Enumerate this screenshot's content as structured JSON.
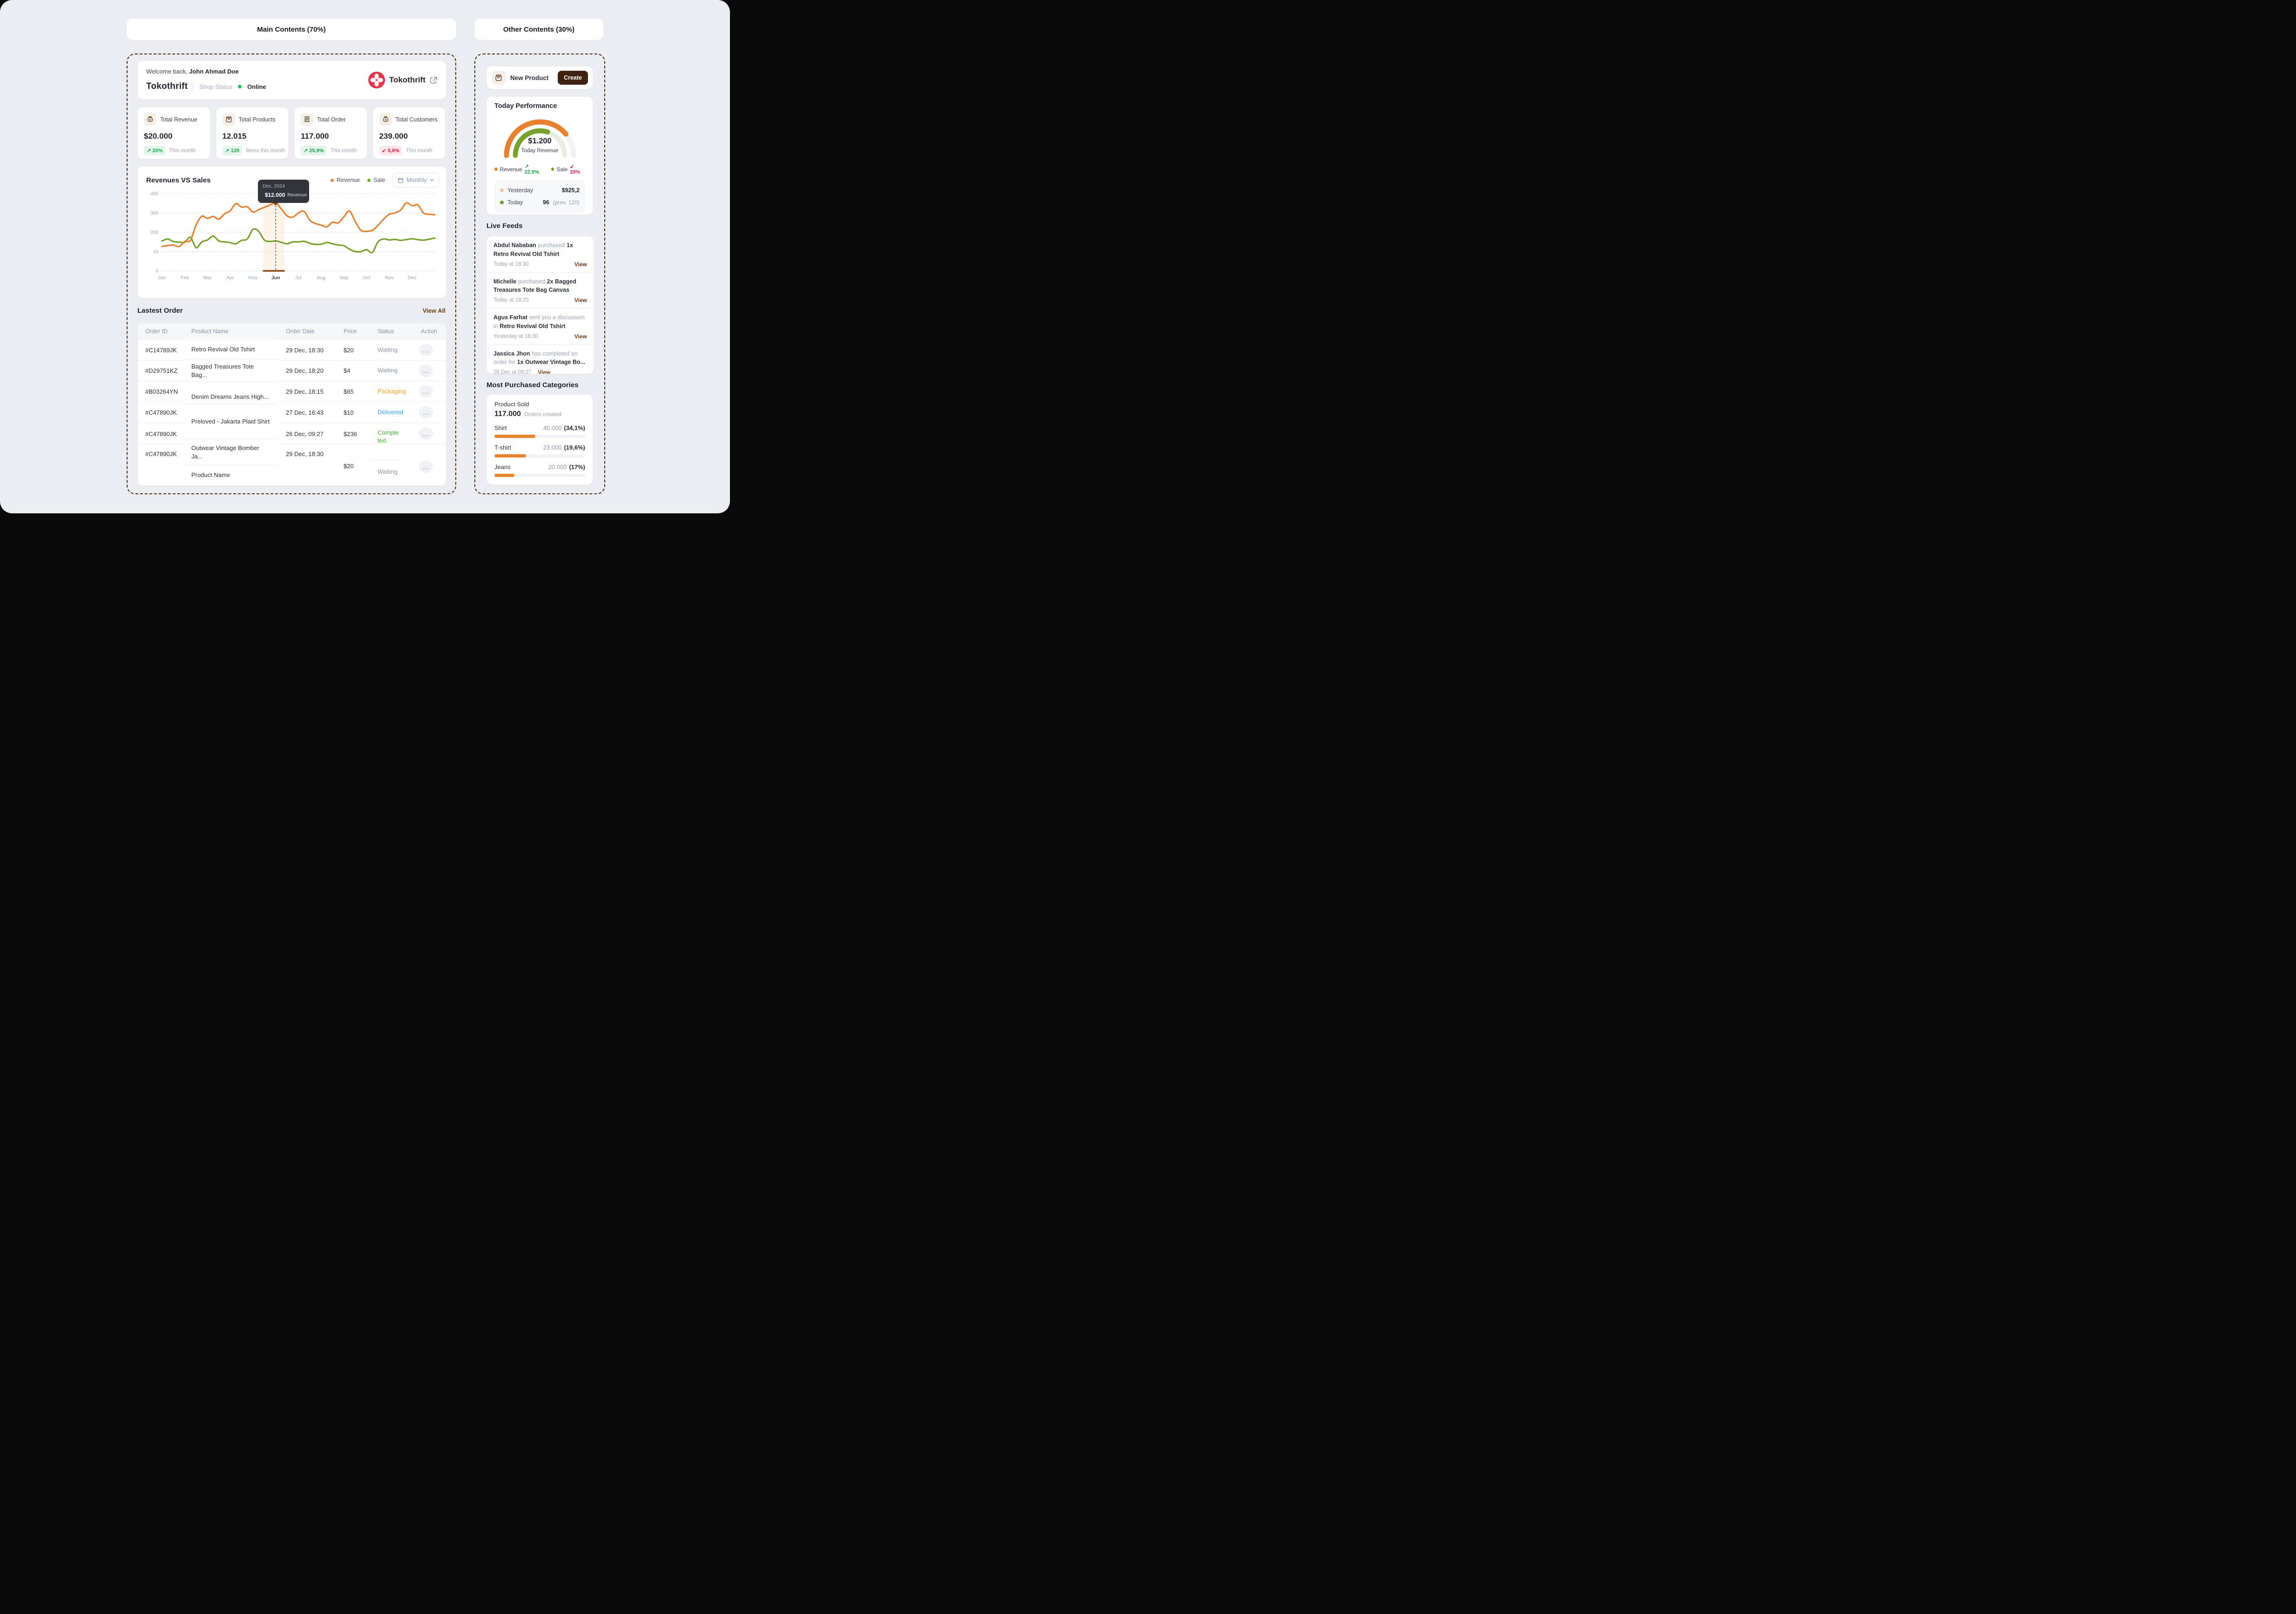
{
  "headers": {
    "main": "Main Contents (70%)",
    "other": "Other Contents (30%)"
  },
  "welcome": {
    "greeting": "Welcome back,",
    "user_name": "John Ahmad Doe",
    "shop_name": "Tokothrift",
    "shop_status_label": "Shop Status",
    "status_value": "Online",
    "status_color": "#22c55e",
    "brand_name": "Tokothrift",
    "brand_color": "#E73249"
  },
  "stats": [
    {
      "icon": "money-bag-icon",
      "label": "Total Revenue",
      "value": "$20.000",
      "delta": "20%",
      "delta_dir": "up",
      "arrow": "↗",
      "note": "This month"
    },
    {
      "icon": "shopping-bag-icon",
      "label": "Total Products",
      "value": "12.015",
      "delta": "120",
      "delta_dir": "up",
      "arrow": "↗",
      "note": "Items this month"
    },
    {
      "icon": "receipt-icon",
      "label": "Total Order",
      "value": "117.000",
      "delta": "25,9%",
      "delta_dir": "up",
      "arrow": "↗",
      "note": "This month"
    },
    {
      "icon": "money-bag-icon",
      "label": "Total Customers",
      "value": "239.000",
      "delta": "5,6%",
      "delta_dir": "down",
      "arrow": "↙",
      "note": "This month"
    }
  ],
  "chart_card": {
    "title": "Revenues VS Sales",
    "range_label": "Monthly",
    "tooltip": {
      "title": "Dec, 2024",
      "value": "$12.000",
      "series": "Revenue"
    }
  },
  "chart_data": {
    "type": "line",
    "title": "Revenues VS Sales",
    "categories": [
      "Jan",
      "Feb",
      "Mar",
      "Apr",
      "May",
      "Jun",
      "Jul",
      "Aug",
      "Sep",
      "Oct",
      "Nov",
      "Dec"
    ],
    "points_per_month": 4,
    "ylim": [
      0,
      400
    ],
    "ytick_labels_top_down": [
      "400",
      "300",
      "200",
      "10",
      "0"
    ],
    "grid": "dotted-horizontal",
    "legend_position": "top-right",
    "highlight": {
      "month": "Jun",
      "point_series": "Revenue",
      "point_value": 352,
      "tooltip": "Dec, 2024 $12.000 Revenue"
    },
    "series": [
      {
        "name": "Revenue",
        "color": "#E8802E",
        "values": [
          127,
          131,
          134,
          126,
          152,
          158,
          238,
          283,
          272,
          282,
          268,
          295,
          311,
          348,
          330,
          332,
          305,
          317,
          329,
          341,
          352,
          320,
          285,
          278,
          300,
          308,
          262,
          245,
          237,
          228,
          252,
          248,
          280,
          310,
          255,
          210,
          205,
          210,
          235,
          268,
          293,
          300,
          315,
          352,
          337,
          342,
          300,
          293,
          291
        ]
      },
      {
        "name": "Sale",
        "color": "#76A12A",
        "values": [
          155,
          165,
          152,
          149,
          148,
          174,
          120,
          150,
          160,
          180,
          155,
          150,
          146,
          140,
          158,
          165,
          215,
          205,
          160,
          152,
          155,
          148,
          140,
          150,
          150,
          153,
          143,
          137,
          138,
          147,
          140,
          134,
          130,
          112,
          100,
          100,
          110,
          95,
          150,
          165,
          160,
          163,
          158,
          162,
          166,
          162,
          159,
          164,
          170
        ]
      }
    ]
  },
  "orders": {
    "title": "Lastest Order",
    "view_all": "View All",
    "columns": [
      "Order ID",
      "Product Name",
      "Order Date",
      "Price",
      "Status",
      "Action"
    ],
    "action_glyph": "...",
    "rows": [
      {
        "id": "#C14789JK",
        "product": "Retro Revival Old Tshirt",
        "date": "29 Dec, 18:30",
        "price": "$20",
        "status": "Waiting",
        "status_color": "gray"
      },
      {
        "id": "#D29751KZ",
        "product": "Bagged Treasures Tote Bag...",
        "date": "29 Dec, 18:20",
        "price": "$4",
        "status": "Waiting",
        "status_color": "gray"
      },
      {
        "id": "#B03264YN",
        "product": "Denim Dreams Jeans High...",
        "date": "29 Dec, 18:15",
        "price": "$65",
        "status": "Packaging",
        "status_color": "orange"
      },
      {
        "id": "#C47890JK",
        "product": "Preloved - Jakarta Plaid Shirt",
        "date": "27 Dec, 16:43",
        "price": "$10",
        "status": "Delivered",
        "status_color": "blue"
      },
      {
        "id": "#C47890JK",
        "product": "Outwear Vintage Bomber Ja...",
        "date": "26 Dec, 09:27",
        "price": "$236",
        "status": "Completed",
        "status_color": "green"
      },
      {
        "id": "#C47890JK",
        "product": "Product Name",
        "date": "29 Dec, 18:30",
        "price": "$20",
        "status": "Waiting",
        "status_color": "gray"
      }
    ],
    "status_colors": {
      "gray": "#8a93a6",
      "orange": "#F5A028",
      "blue": "#2FA8F5",
      "green": "#3CB52B"
    }
  },
  "right": {
    "new_product": {
      "label": "New Product",
      "button": "Create"
    },
    "today_performance": {
      "title": "Today Performance",
      "center_value": "$1.200",
      "center_label": "Today Revenue",
      "gauges": [
        {
          "name": "Revenue",
          "color": "#E8802E",
          "fraction": 0.78
        },
        {
          "name": "Sale",
          "color": "#76A12A",
          "fraction": 0.6
        }
      ],
      "legend": [
        {
          "label": "Revenue",
          "arrow": "↗",
          "delta": "22,9%",
          "dir": "up"
        },
        {
          "label": "Sale",
          "arrow": "↙",
          "delta": "20%",
          "dir": "down"
        }
      ],
      "breakdown": [
        {
          "label": "Yesterday",
          "dot": "#F6C39B",
          "value": "$925,2",
          "extra": ""
        },
        {
          "label": "Today",
          "dot": "#6F9E20",
          "value": "96",
          "extra": "(prev. 120)"
        }
      ]
    },
    "live_feeds": {
      "title": "Live Feeds",
      "items": [
        {
          "parts": [
            {
              "t": "Abdul Nababan",
              "s": "name"
            },
            {
              "t": " purchased ",
              "s": "muted"
            },
            {
              "t": "1x Retro Revival Old Tshirt",
              "s": "strong"
            }
          ],
          "time": "Today at 18:30",
          "view": "View",
          "view_inline": false
        },
        {
          "parts": [
            {
              "t": "Michelle",
              "s": "name"
            },
            {
              "t": " purchased ",
              "s": "muted"
            },
            {
              "t": "2x Bagged Treasures Tote Bag Canvas",
              "s": "strong"
            }
          ],
          "time": "Today at 18:20",
          "view": "View",
          "view_inline": false
        },
        {
          "parts": [
            {
              "t": "Agus Farhat",
              "s": "name"
            },
            {
              "t": " sent you a discussion in ",
              "s": "muted"
            },
            {
              "t": "Retro Revival Old Tshirt",
              "s": "strong"
            }
          ],
          "time": "Yesterday at 18:30",
          "view": "View",
          "view_inline": false
        },
        {
          "parts": [
            {
              "t": "Jassica Jhon",
              "s": "name"
            },
            {
              "t": " has completed an order for ",
              "s": "muted"
            },
            {
              "t": "1x Outwear Vintage Bo...",
              "s": "strong"
            }
          ],
          "time": "26 Dec at 09:27",
          "view": "View",
          "view_inline": true
        }
      ]
    },
    "categories_card": {
      "title": "Most Purchased Categories",
      "subtitle": "Product Sold",
      "total": "117.000",
      "total_note": "Orders created",
      "bar_color": "#e8832e",
      "items": [
        {
          "label": "Shirt",
          "value": "40.000",
          "pct": "(34,1%)",
          "bar": 0.45
        },
        {
          "label": "T-shirt",
          "value": "23.000",
          "pct": "(19,6%)",
          "bar": 0.35
        },
        {
          "label": "Jeans",
          "value": "20.000",
          "pct": "(17%)",
          "bar": 0.22
        }
      ]
    }
  }
}
